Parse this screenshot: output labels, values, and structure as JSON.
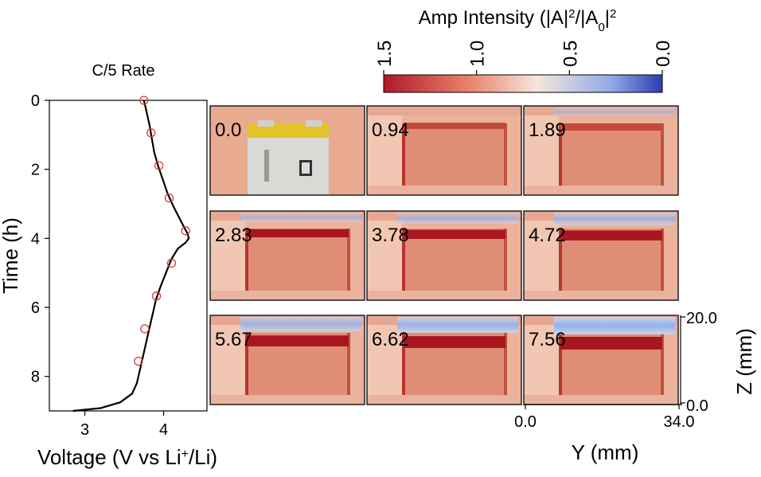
{
  "chart_data": [
    {
      "type": "line",
      "title": "C/5 Rate",
      "xlabel_pre": "Voltage (V vs Li",
      "xlabel_sup": "+",
      "xlabel_post": "/Li)",
      "ylabel": "Time (h)",
      "xlim": [
        2.55,
        4.55
      ],
      "ylim": [
        9,
        0
      ],
      "xticks": [
        3,
        4
      ],
      "yticks": [
        0,
        2,
        4,
        6,
        8
      ],
      "series": [
        {
          "color": "#000000",
          "points": [
            [
              3.75,
              0.0
            ],
            [
              3.78,
              0.3
            ],
            [
              3.82,
              0.7
            ],
            [
              3.85,
              1.1
            ],
            [
              3.88,
              1.5
            ],
            [
              3.93,
              1.9
            ],
            [
              3.99,
              2.3
            ],
            [
              4.05,
              2.7
            ],
            [
              4.13,
              3.1
            ],
            [
              4.22,
              3.5
            ],
            [
              4.3,
              3.85
            ],
            [
              4.32,
              4.0
            ],
            [
              4.28,
              4.12
            ],
            [
              4.18,
              4.3
            ],
            [
              4.1,
              4.6
            ],
            [
              4.03,
              5.0
            ],
            [
              3.96,
              5.4
            ],
            [
              3.9,
              5.8
            ],
            [
              3.86,
              6.2
            ],
            [
              3.82,
              6.6
            ],
            [
              3.78,
              7.0
            ],
            [
              3.74,
              7.4
            ],
            [
              3.7,
              7.8
            ],
            [
              3.66,
              8.2
            ],
            [
              3.6,
              8.5
            ],
            [
              3.45,
              8.75
            ],
            [
              3.2,
              8.92
            ],
            [
              2.85,
              9.0
            ]
          ]
        }
      ],
      "markers": {
        "color": "#d43b3b",
        "points": [
          [
            3.75,
            0.0
          ],
          [
            3.84,
            0.94
          ],
          [
            3.94,
            1.89
          ],
          [
            4.07,
            2.83
          ],
          [
            4.28,
            3.78
          ],
          [
            4.1,
            4.72
          ],
          [
            3.91,
            5.67
          ],
          [
            3.76,
            6.62
          ],
          [
            3.68,
            7.56
          ]
        ]
      }
    },
    {
      "type": "heatmap",
      "colorbar": {
        "title_pre": "Amp Intensity (|A|",
        "title_sup1": "2",
        "title_mid": "/|A",
        "title_sub": "0",
        "title_post": "|",
        "title_sup2": "2",
        "range": [
          1.5,
          0.0
        ],
        "ticks": [
          "1.5",
          "1.0",
          "0.5",
          "0.0"
        ],
        "colors": [
          "#b2182b",
          "#e8806a",
          "#f6e6dc",
          "#8ea9e8",
          "#2b3caf"
        ]
      },
      "panels": [
        {
          "label": "0.0",
          "photo": true
        },
        {
          "label": "0.94"
        },
        {
          "label": "1.89"
        },
        {
          "label": "2.83"
        },
        {
          "label": "3.78"
        },
        {
          "label": "4.72"
        },
        {
          "label": "5.67"
        },
        {
          "label": "6.62"
        },
        {
          "label": "7.56"
        }
      ],
      "xlabel": "Y (mm)",
      "ylabel": "Z (mm)",
      "xlim": [
        0.0,
        34.0
      ],
      "ylim": [
        0.0,
        20.0
      ],
      "xtick_labels": [
        "0.0",
        "34.0"
      ],
      "ytick_labels": [
        "0.0",
        "20.0"
      ]
    }
  ]
}
